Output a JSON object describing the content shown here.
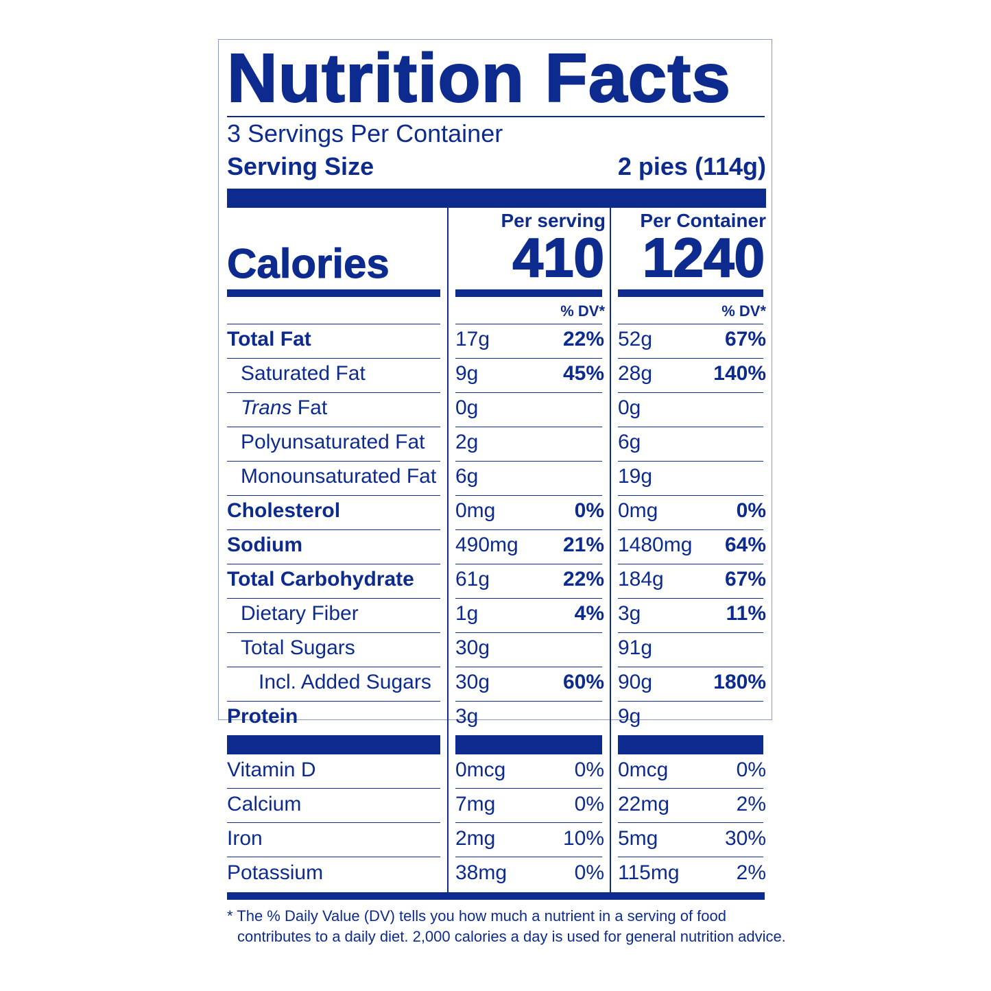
{
  "title": "Nutrition Facts",
  "servings_per_container": "3 Servings Per Container",
  "serving_size_label": "Serving Size",
  "serving_size_value": "2 pies (114g)",
  "calories_label": "Calories",
  "columns": [
    {
      "heading": "Per serving",
      "calories": "410",
      "dv_heading": "% DV*"
    },
    {
      "heading": "Per Container",
      "calories": "1240",
      "dv_heading": "% DV*"
    }
  ],
  "nutrients": [
    {
      "name": "Total Fat",
      "serving_amount": "17g",
      "serving_dv": "22%",
      "container_amount": "52g",
      "container_dv": "67%"
    },
    {
      "name": "Saturated Fat",
      "serving_amount": "9g",
      "serving_dv": "45%",
      "container_amount": "28g",
      "container_dv": "140%"
    },
    {
      "name_italic": "Trans",
      "name": " Fat",
      "serving_amount": "0g",
      "serving_dv": "",
      "container_amount": "0g",
      "container_dv": ""
    },
    {
      "name": "Polyunsaturated Fat",
      "serving_amount": "2g",
      "serving_dv": "",
      "container_amount": "6g",
      "container_dv": ""
    },
    {
      "name": "Monounsaturated Fat",
      "serving_amount": "6g",
      "serving_dv": "",
      "container_amount": "19g",
      "container_dv": ""
    },
    {
      "name": "Cholesterol",
      "serving_amount": "0mg",
      "serving_dv": "0%",
      "container_amount": "0mg",
      "container_dv": "0%"
    },
    {
      "name": "Sodium",
      "serving_amount": "490mg",
      "serving_dv": "21%",
      "container_amount": "1480mg",
      "container_dv": "64%"
    },
    {
      "name": "Total Carbohydrate",
      "serving_amount": "61g",
      "serving_dv": "22%",
      "container_amount": "184g",
      "container_dv": "67%"
    },
    {
      "name": "Dietary Fiber",
      "serving_amount": "1g",
      "serving_dv": "4%",
      "container_amount": "3g",
      "container_dv": "11%"
    },
    {
      "name": "Total Sugars",
      "serving_amount": "30g",
      "serving_dv": "",
      "container_amount": "91g",
      "container_dv": ""
    },
    {
      "name": "Incl. Added Sugars",
      "serving_amount": "30g",
      "serving_dv": "60%",
      "container_amount": "90g",
      "container_dv": "180%"
    },
    {
      "name": "Protein",
      "serving_amount": "3g",
      "serving_dv": "",
      "container_amount": "9g",
      "container_dv": ""
    }
  ],
  "vitamins": [
    {
      "name": "Vitamin D",
      "serving_amount": "0mcg",
      "serving_dv": "0%",
      "container_amount": "0mcg",
      "container_dv": "0%"
    },
    {
      "name": "Calcium",
      "serving_amount": "7mg",
      "serving_dv": "0%",
      "container_amount": "22mg",
      "container_dv": "2%"
    },
    {
      "name": "Iron",
      "serving_amount": "2mg",
      "serving_dv": "10%",
      "container_amount": "5mg",
      "container_dv": "30%"
    },
    {
      "name": "Potassium",
      "serving_amount": "38mg",
      "serving_dv": "0%",
      "container_amount": "115mg",
      "container_dv": "2%"
    }
  ],
  "footnote": {
    "line1": "* The % Daily Value (DV) tells you how much a nutrient in a serving of food",
    "line2": "contributes to a daily diet. 2,000 calories a day is used for general nutrition advice."
  },
  "colors": {
    "ink": "#0d2b8f",
    "border": "#8a96c8",
    "background": "#ffffff"
  }
}
